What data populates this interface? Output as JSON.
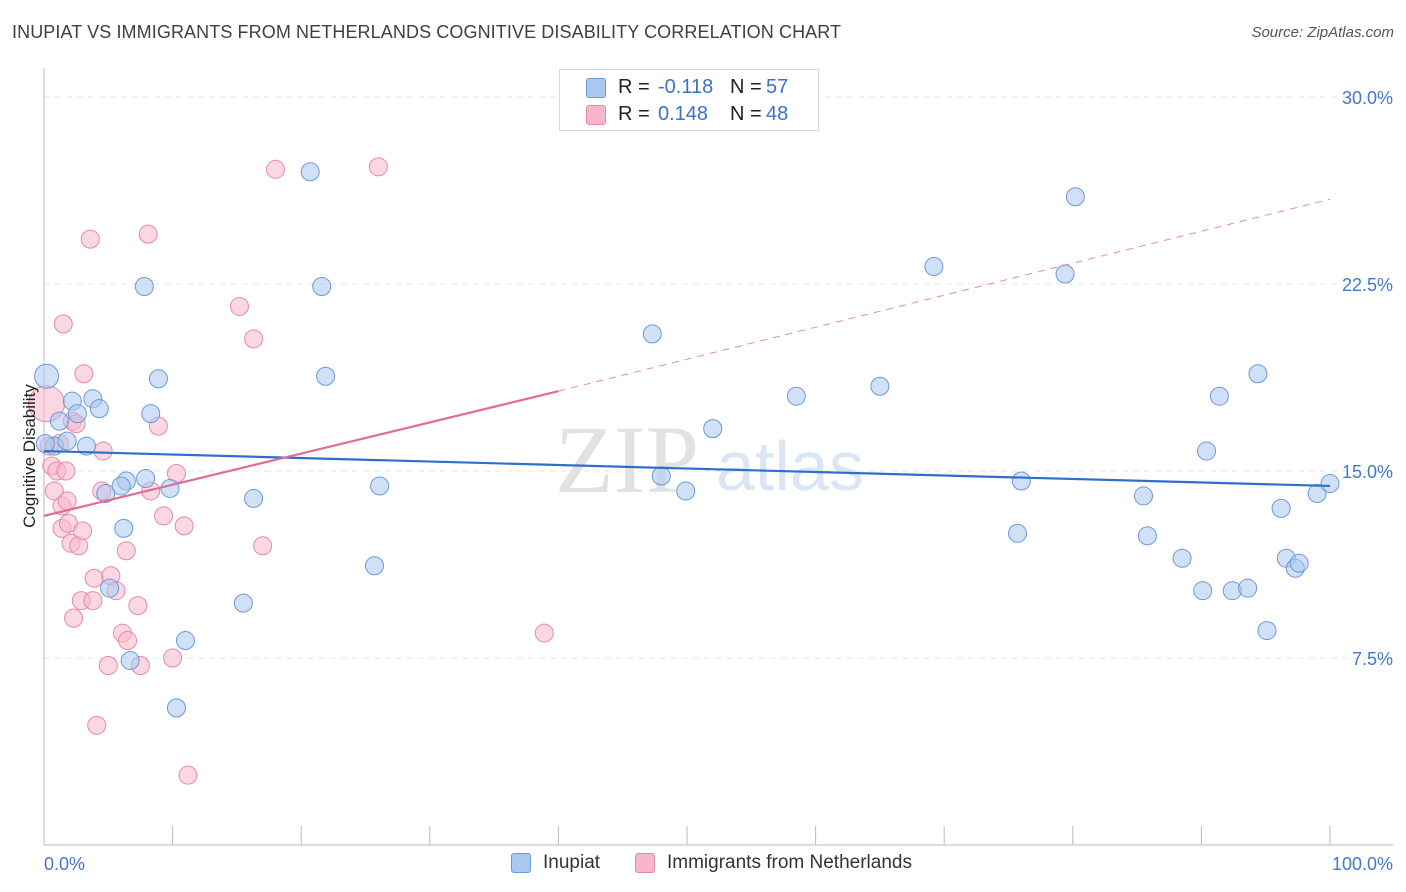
{
  "title": "INUPIAT VS IMMIGRANTS FROM NETHERLANDS COGNITIVE DISABILITY CORRELATION CHART",
  "source": "Source: ZipAtlas.com",
  "watermark": {
    "zip": "ZIP",
    "atlas": "atlas"
  },
  "colors": {
    "blue_fill": "#a9c8f0",
    "blue_stroke": "#6a9ad8",
    "blue_line": "#2f6fcc",
    "pink_fill": "#f7b6ca",
    "pink_stroke": "#e58aa8",
    "pink_line": "#e06c97",
    "axis_text": "#4477cc",
    "grid": "#e4e4e4"
  },
  "legend_top": {
    "rows": [
      {
        "r_label": "R =",
        "r_value": "-0.118",
        "n_label": "N =",
        "n_value": "57"
      },
      {
        "r_label": "R =",
        "r_value": "0.148",
        "n_label": "N =",
        "n_value": "48"
      }
    ]
  },
  "legend_bottom": {
    "items": [
      {
        "label": "Inupiat"
      },
      {
        "label": "Immigrants from Netherlands"
      }
    ]
  },
  "chart_data": {
    "type": "scatter",
    "title": "INUPIAT VS IMMIGRANTS FROM NETHERLANDS COGNITIVE DISABILITY CORRELATION CHART",
    "xlabel": "",
    "ylabel": "Cognitive Disability",
    "xlim": [
      0,
      100
    ],
    "ylim": [
      0,
      30.0
    ],
    "x_tick_labels": [
      "0.0%",
      "100.0%"
    ],
    "y_ticks": [
      7.5,
      15.0,
      22.5,
      30.0
    ],
    "y_tick_labels": [
      "7.5%",
      "15.0%",
      "22.5%",
      "30.0%"
    ],
    "grid": true,
    "legend_position": "top-center",
    "series": [
      {
        "name": "Inupiat",
        "color": "#a9c8f0",
        "trend": {
          "x": [
            0,
            100
          ],
          "y": [
            15.8,
            14.4
          ],
          "style": "solid"
        },
        "points": [
          [
            0.2,
            18.8
          ],
          [
            0.8,
            16.0
          ],
          [
            1.2,
            17.0
          ],
          [
            1.8,
            16.2
          ],
          [
            2.2,
            17.8
          ],
          [
            2.6,
            17.3
          ],
          [
            3.3,
            16.0
          ],
          [
            3.8,
            17.9
          ],
          [
            4.3,
            17.5
          ],
          [
            4.8,
            14.1
          ],
          [
            5.1,
            10.3
          ],
          [
            6.2,
            12.7
          ],
          [
            6.4,
            14.6
          ],
          [
            6.7,
            7.4
          ],
          [
            7.8,
            22.4
          ],
          [
            7.9,
            14.7
          ],
          [
            8.3,
            17.3
          ],
          [
            8.9,
            18.7
          ],
          [
            9.8,
            14.3
          ],
          [
            10.3,
            5.5
          ],
          [
            11.0,
            8.2
          ],
          [
            15.5,
            9.7
          ],
          [
            16.3,
            13.9
          ],
          [
            20.7,
            27.0
          ],
          [
            21.6,
            22.4
          ],
          [
            21.9,
            18.8
          ],
          [
            25.7,
            11.2
          ],
          [
            26.1,
            14.4
          ],
          [
            47.3,
            20.5
          ],
          [
            48.0,
            14.8
          ],
          [
            49.9,
            14.2
          ],
          [
            52.0,
            16.7
          ],
          [
            58.5,
            18.0
          ],
          [
            65.0,
            18.4
          ],
          [
            69.2,
            23.2
          ],
          [
            75.7,
            12.5
          ],
          [
            76.0,
            14.6
          ],
          [
            79.4,
            22.9
          ],
          [
            80.2,
            26.0
          ],
          [
            85.5,
            14.0
          ],
          [
            85.8,
            12.4
          ],
          [
            88.5,
            11.5
          ],
          [
            90.1,
            10.2
          ],
          [
            90.4,
            15.8
          ],
          [
            91.4,
            18.0
          ],
          [
            92.4,
            10.2
          ],
          [
            93.6,
            10.3
          ],
          [
            94.4,
            18.9
          ],
          [
            95.1,
            8.6
          ],
          [
            96.2,
            13.5
          ],
          [
            96.6,
            11.5
          ],
          [
            97.3,
            11.1
          ],
          [
            97.6,
            11.3
          ],
          [
            99.0,
            14.1
          ],
          [
            100,
            14.5
          ],
          [
            0.1,
            16.1
          ],
          [
            6.0,
            14.4
          ]
        ]
      },
      {
        "name": "Immigrants from Netherlands",
        "color": "#f7b6ca",
        "trend": {
          "x": [
            0,
            40
          ],
          "y": [
            13.2,
            18.2
          ],
          "style": "solid",
          "extension_x": [
            40,
            100
          ],
          "extension_y": [
            18.2,
            25.9
          ],
          "extension_style": "dashed"
        },
        "points": [
          [
            0.2,
            17.7
          ],
          [
            0.4,
            16.0
          ],
          [
            0.6,
            15.2
          ],
          [
            0.8,
            14.2
          ],
          [
            1.0,
            15.0
          ],
          [
            1.2,
            16.1
          ],
          [
            1.4,
            12.7
          ],
          [
            1.4,
            13.6
          ],
          [
            1.5,
            20.9
          ],
          [
            1.7,
            15.0
          ],
          [
            1.8,
            13.8
          ],
          [
            1.9,
            12.9
          ],
          [
            2.1,
            12.1
          ],
          [
            2.2,
            17.0
          ],
          [
            2.3,
            9.1
          ],
          [
            2.5,
            16.9
          ],
          [
            2.7,
            12.0
          ],
          [
            2.9,
            9.8
          ],
          [
            3.0,
            12.6
          ],
          [
            3.1,
            18.9
          ],
          [
            3.6,
            24.3
          ],
          [
            3.8,
            9.8
          ],
          [
            3.9,
            10.7
          ],
          [
            4.1,
            4.8
          ],
          [
            4.5,
            14.2
          ],
          [
            4.6,
            15.8
          ],
          [
            5.0,
            7.2
          ],
          [
            5.2,
            10.8
          ],
          [
            5.6,
            10.2
          ],
          [
            6.1,
            8.5
          ],
          [
            6.4,
            11.8
          ],
          [
            6.5,
            8.2
          ],
          [
            7.3,
            9.6
          ],
          [
            7.5,
            7.2
          ],
          [
            8.1,
            24.5
          ],
          [
            8.3,
            14.2
          ],
          [
            8.9,
            16.8
          ],
          [
            9.3,
            13.2
          ],
          [
            10.0,
            7.5
          ],
          [
            10.3,
            14.9
          ],
          [
            10.9,
            12.8
          ],
          [
            11.2,
            2.8
          ],
          [
            15.2,
            21.6
          ],
          [
            16.3,
            20.3
          ],
          [
            17.0,
            12.0
          ],
          [
            18.0,
            27.1
          ],
          [
            26.0,
            27.2
          ],
          [
            38.9,
            8.5
          ]
        ]
      }
    ]
  }
}
